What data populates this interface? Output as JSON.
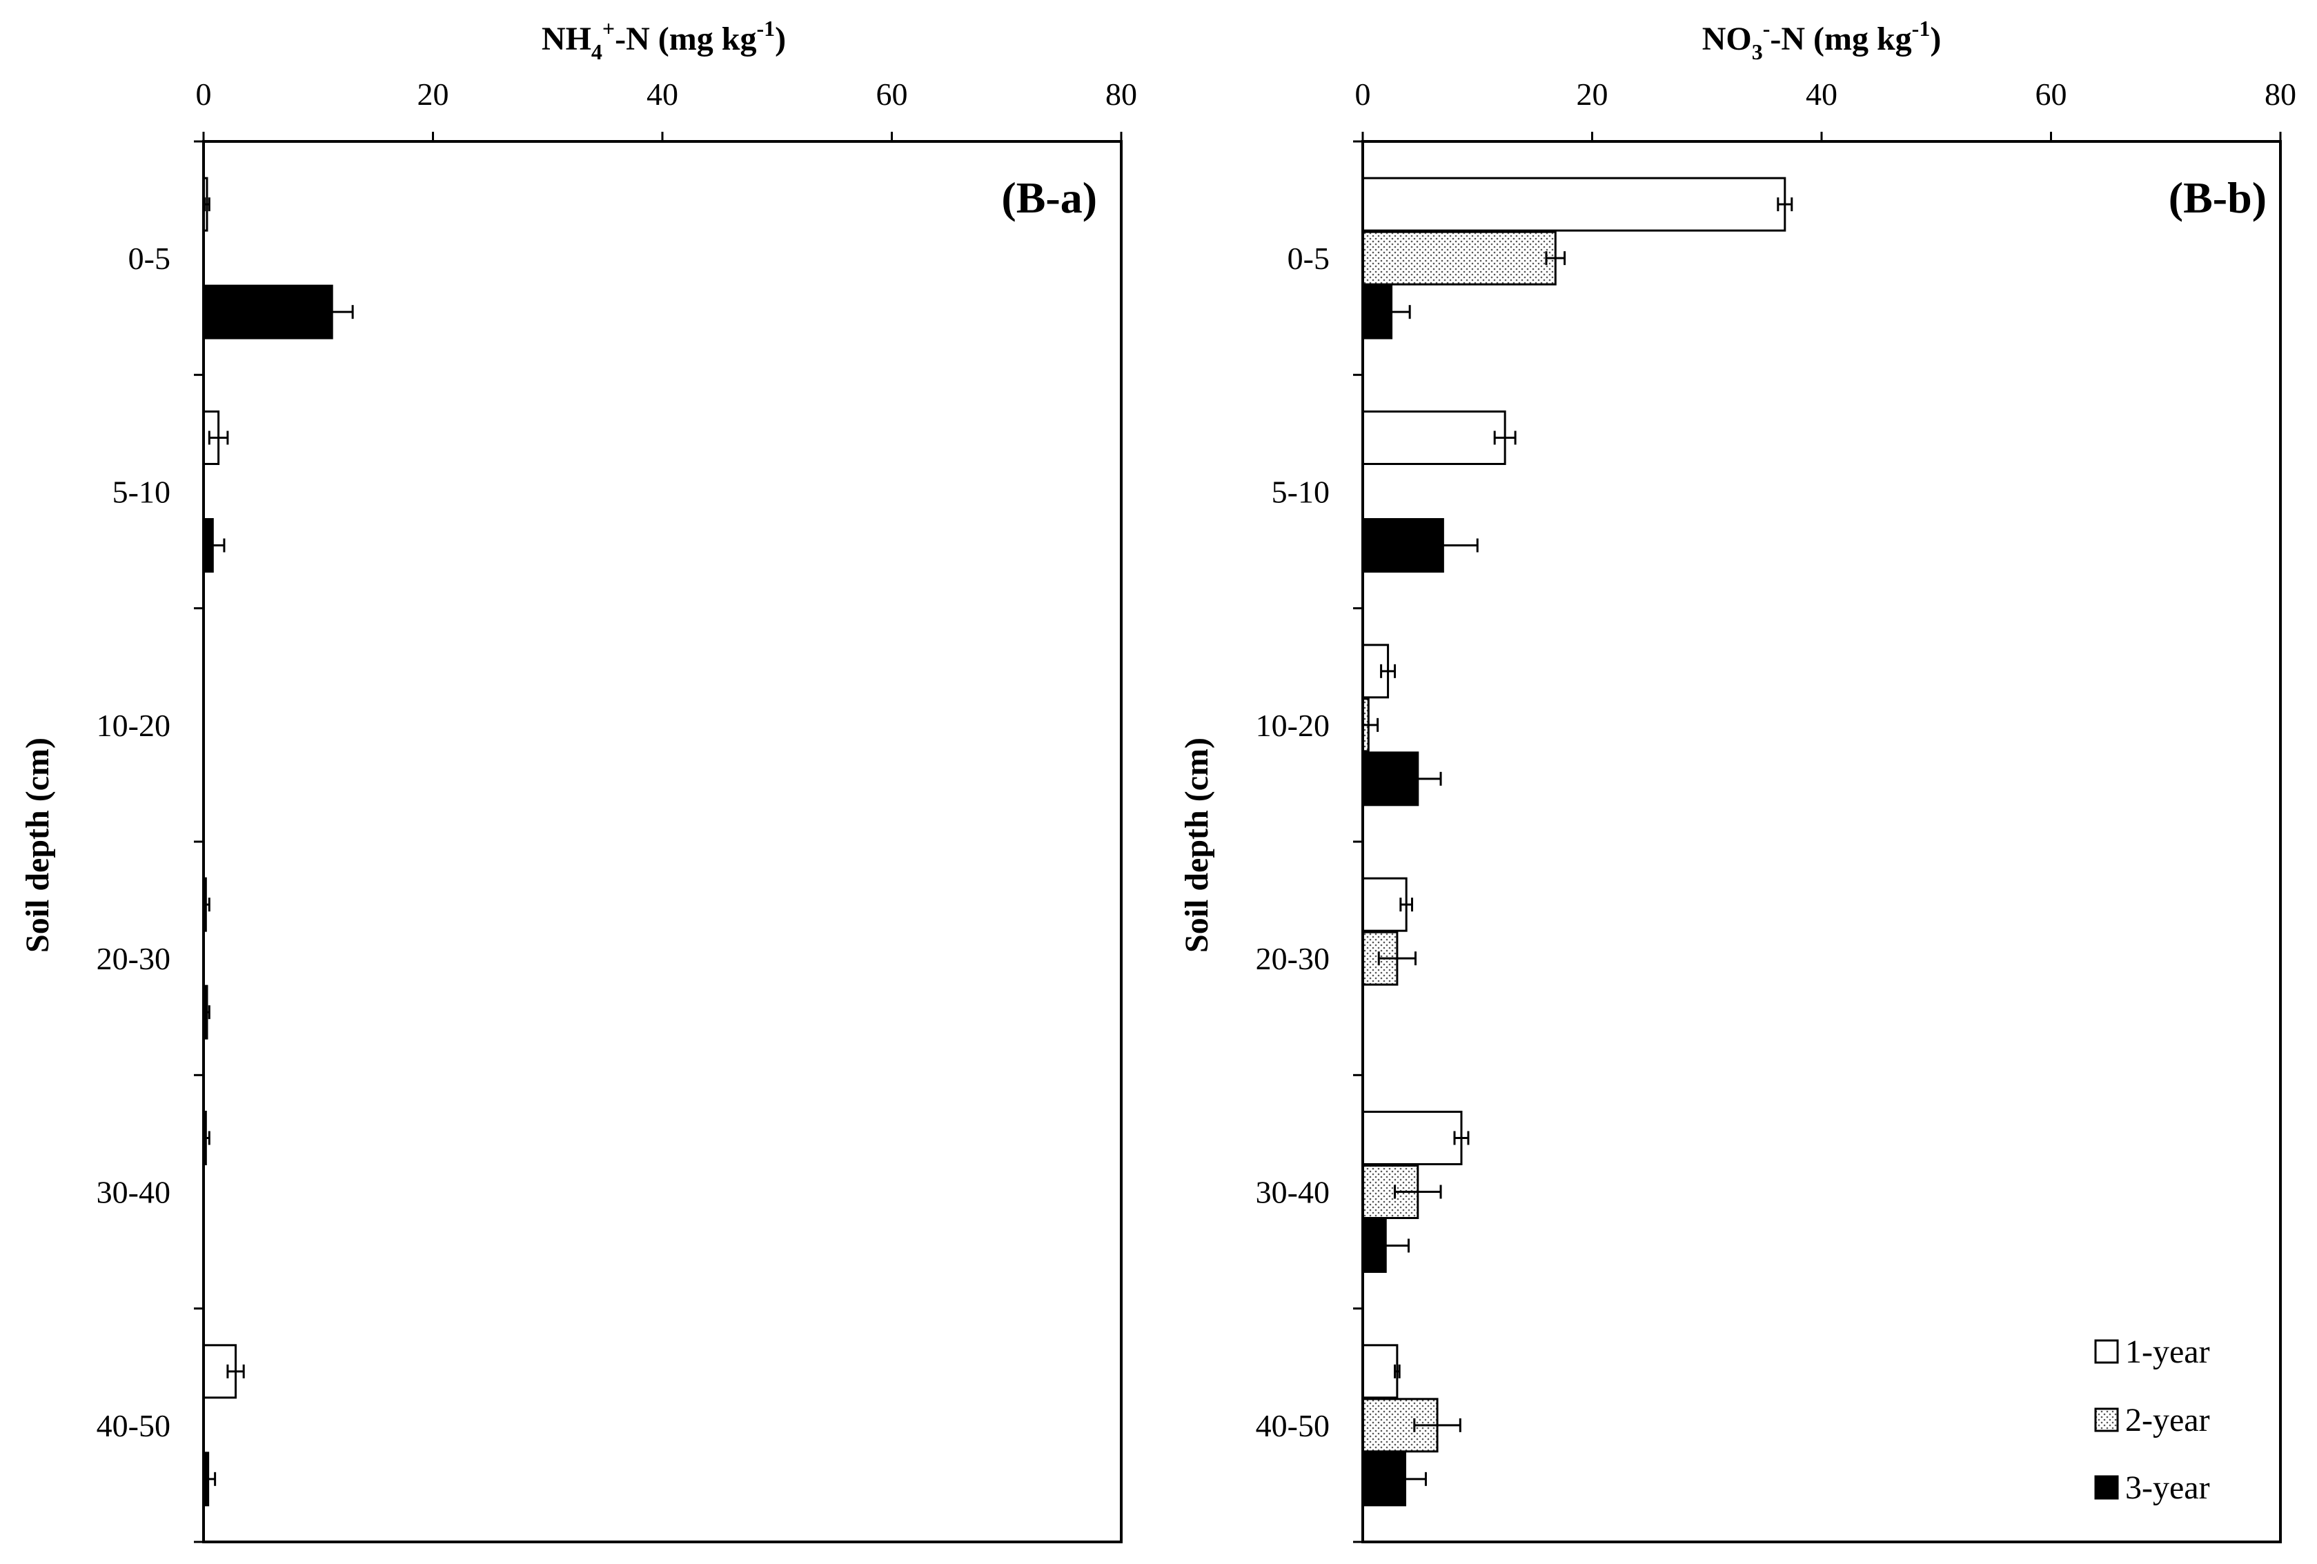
{
  "chart_data": [
    {
      "type": "bar",
      "orientation": "horizontal",
      "panel_label": "(B-a)",
      "title": "NH4+-N (mg kg-1)",
      "xlabel_parts": {
        "base": "NH",
        "sub": "4",
        "sup": "+",
        "mid": "-N (mg kg",
        "sup2": "-1",
        "end": ")"
      },
      "ylabel": "Soil depth (cm)",
      "xlim": [
        0,
        80
      ],
      "x_ticks": [
        "0",
        "20",
        "40",
        "60",
        "80"
      ],
      "categories": [
        "0-5",
        "5-10",
        "10-20",
        "20-30",
        "30-40",
        "40-50"
      ],
      "series": [
        {
          "name": "1-year",
          "values": [
            0.3,
            1.3,
            0.0,
            0.2,
            0.2,
            2.8
          ],
          "errors": [
            0.2,
            0.8,
            0.0,
            0.3,
            0.3,
            0.7
          ]
        },
        {
          "name": "2-year",
          "values": [
            0.0,
            0.0,
            0.0,
            0.0,
            0.0,
            0.0
          ],
          "errors": [
            0,
            0,
            0,
            0,
            0,
            0
          ]
        },
        {
          "name": "3-year",
          "values": [
            11.2,
            0.8,
            0.0,
            0.3,
            0.0,
            0.4
          ],
          "errors": [
            1.8,
            1.0,
            0.0,
            0.2,
            0.0,
            0.6
          ]
        }
      ]
    },
    {
      "type": "bar",
      "orientation": "horizontal",
      "panel_label": "(B-b)",
      "title": "NO3--N (mg kg-1)",
      "xlabel_parts": {
        "base": "NO",
        "sub": "3",
        "sup": "-",
        "mid": "-N (mg kg",
        "sup2": "-1",
        "end": ")"
      },
      "ylabel": "Soil depth (cm)",
      "xlim": [
        0,
        80
      ],
      "x_ticks": [
        "0",
        "20",
        "40",
        "60",
        "80"
      ],
      "categories": [
        "0-5",
        "5-10",
        "10-20",
        "20-30",
        "30-40",
        "40-50"
      ],
      "series": [
        {
          "name": "1-year",
          "values": [
            36.8,
            12.4,
            2.2,
            3.8,
            8.6,
            3.0
          ],
          "errors": [
            0.6,
            0.9,
            0.6,
            0.5,
            0.6,
            0.2
          ]
        },
        {
          "name": "2-year",
          "values": [
            16.8,
            0.0,
            0.5,
            3.0,
            4.8,
            6.5
          ],
          "errors": [
            0.8,
            0.0,
            0.8,
            1.6,
            2.0,
            2.0
          ]
        },
        {
          "name": "3-year",
          "values": [
            2.5,
            7.0,
            4.8,
            0.0,
            2.0,
            3.7
          ],
          "errors": [
            1.6,
            3.0,
            2.0,
            0.0,
            2.0,
            1.8
          ]
        }
      ]
    }
  ],
  "legend": {
    "position": "bottom-right",
    "items": [
      {
        "label": "1-year",
        "fill": "white"
      },
      {
        "label": "2-year",
        "fill": "dotted"
      },
      {
        "label": "3-year",
        "fill": "black"
      }
    ]
  },
  "colors": {
    "bar_3_year": "#000000",
    "bar_1_year": "#ffffff",
    "outline": "#000000"
  }
}
